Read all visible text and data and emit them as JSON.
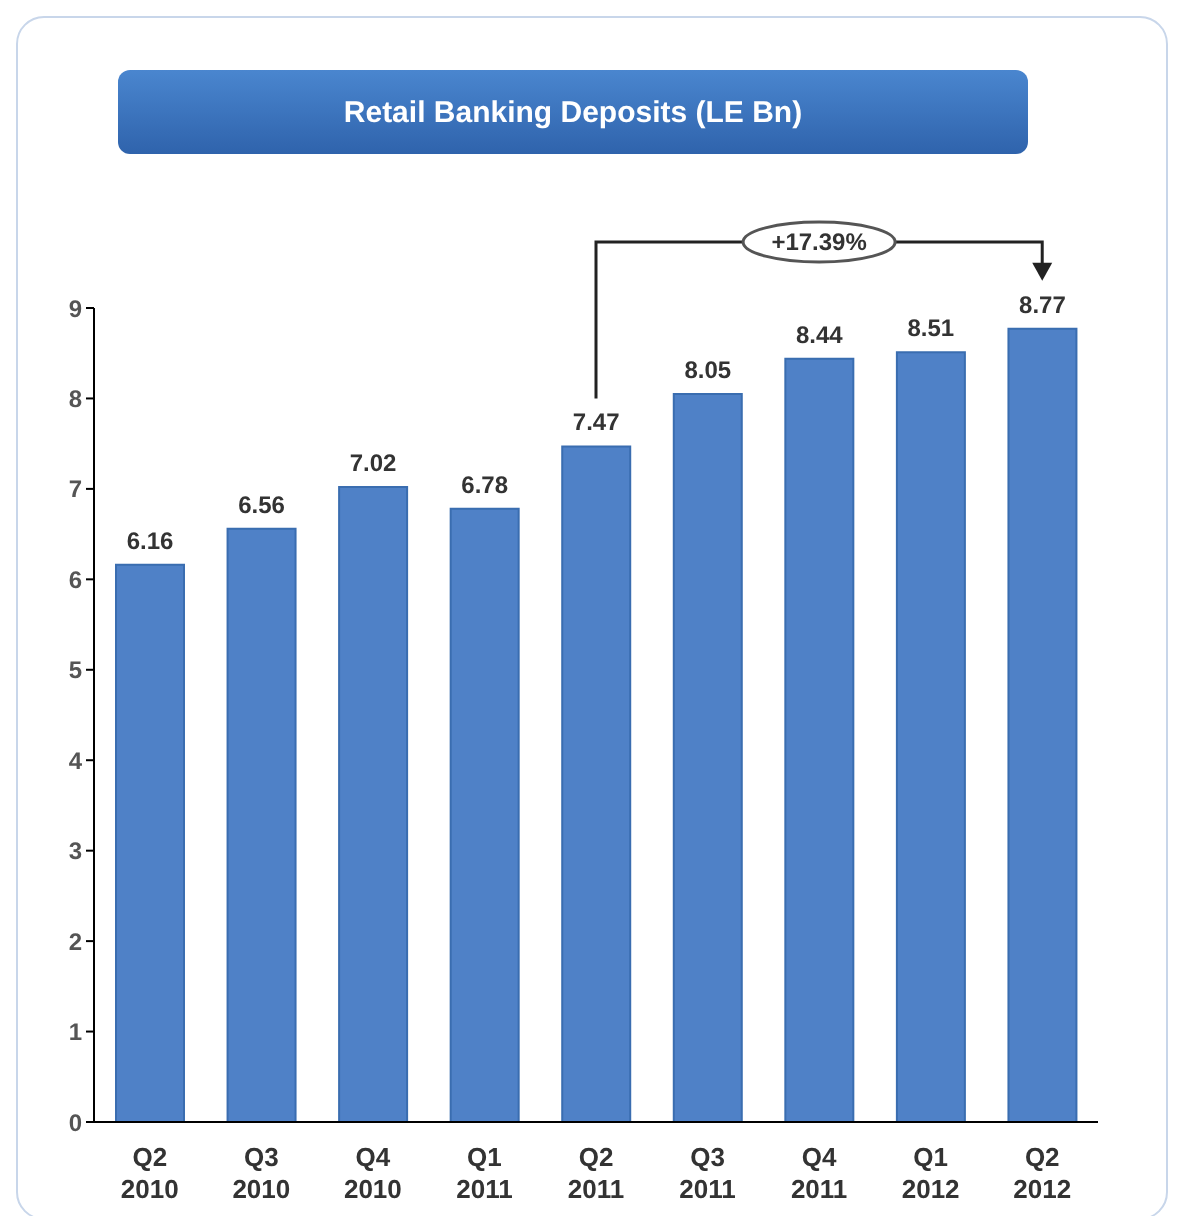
{
  "chart_data": {
    "type": "bar",
    "title": "Retail Banking Deposits (LE Bn)",
    "categories": [
      "Q2 2010",
      "Q3 2010",
      "Q4 2010",
      "Q1 2011",
      "Q2 2011",
      "Q3 2011",
      "Q4 2011",
      "Q1 2012",
      "Q2 2012"
    ],
    "values": [
      6.16,
      6.56,
      7.02,
      6.78,
      7.47,
      8.05,
      8.44,
      8.51,
      8.77
    ],
    "color": "#4f81c7",
    "ylim": [
      0,
      9
    ],
    "yticks": [
      0,
      1,
      2,
      3,
      4,
      5,
      6,
      7,
      8,
      9
    ],
    "grid": false,
    "data_labels": true,
    "annotations": [
      "+17.39%"
    ]
  }
}
